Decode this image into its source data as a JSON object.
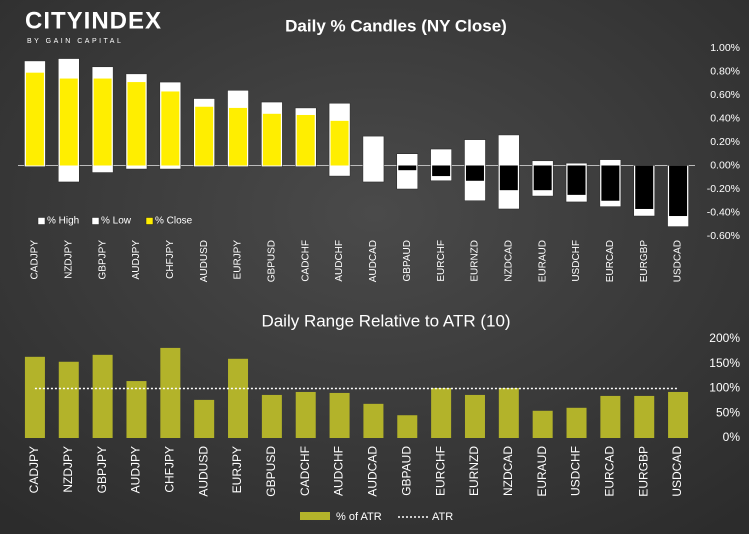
{
  "logo": {
    "name": "CITYINDEX",
    "tagline": "BY GAIN CAPITAL"
  },
  "chart_data": [
    {
      "type": "candle",
      "title": "Daily % Candles (NY Close)",
      "categories": [
        "CADJPY",
        "NZDJPY",
        "GBPJPY",
        "AUDJPY",
        "CHFJPY",
        "AUDUSD",
        "EURJPY",
        "GBPUSD",
        "CADCHF",
        "AUDCHF",
        "AUDCAD",
        "GBPAUD",
        "EURCHF",
        "EURNZD",
        "NZDCAD",
        "EURAUD",
        "USDCHF",
        "EURCAD",
        "EURGBP",
        "USDCAD"
      ],
      "series": [
        {
          "name": "% High",
          "color": "#ffffff",
          "values": [
            0.89,
            0.91,
            0.84,
            0.78,
            0.71,
            0.57,
            0.64,
            0.54,
            0.49,
            0.53,
            0.25,
            0.1,
            0.14,
            0.22,
            0.26,
            0.04,
            0.02,
            0.05,
            0,
            0
          ]
        },
        {
          "name": "% Low",
          "color": "#ffffff",
          "values": [
            -0.01,
            -0.14,
            -0.06,
            -0.03,
            -0.03,
            -0.01,
            -0.01,
            -0.01,
            -0.01,
            -0.09,
            -0.14,
            -0.2,
            -0.13,
            -0.3,
            -0.37,
            -0.26,
            -0.31,
            -0.35,
            -0.43,
            -0.52
          ]
        },
        {
          "name": "% Close",
          "color": "#ffee00",
          "negative_color": "#000000",
          "values": [
            0.79,
            0.74,
            0.74,
            0.71,
            0.63,
            0.5,
            0.49,
            0.44,
            0.43,
            0.38,
            0,
            -0.04,
            -0.09,
            -0.13,
            -0.21,
            -0.21,
            -0.25,
            -0.3,
            -0.37,
            -0.43
          ]
        }
      ],
      "ylim": [
        -0.6,
        1.0
      ],
      "yticks": [
        {
          "value": 1.0,
          "label": "1.00%"
        },
        {
          "value": 0.8,
          "label": "0.80%"
        },
        {
          "value": 0.6,
          "label": "0.60%"
        },
        {
          "value": 0.4,
          "label": "0.40%"
        },
        {
          "value": 0.2,
          "label": "0.20%"
        },
        {
          "value": 0,
          "label": "0.00%"
        },
        {
          "value": -0.2,
          "label": "-0.20%"
        },
        {
          "value": -0.4,
          "label": "-0.40%"
        },
        {
          "value": -0.6,
          "label": "-0.60%"
        }
      ],
      "legend": "lower left"
    },
    {
      "type": "bar",
      "title": "Daily Range Relative to ATR (10)",
      "categories": [
        "CADJPY",
        "NZDJPY",
        "GBPJPY",
        "AUDJPY",
        "CHFJPY",
        "AUDUSD",
        "EURJPY",
        "GBPUSD",
        "CADCHF",
        "AUDCHF",
        "AUDCAD",
        "GBPAUD",
        "EURCHF",
        "EURNZD",
        "NZDCAD",
        "EURAUD",
        "USDCHF",
        "EURCAD",
        "EURGBP",
        "USDCAD"
      ],
      "series": [
        {
          "name": "% of ATR",
          "color": "#b3b32a",
          "values": [
            164,
            154,
            168,
            115,
            182,
            77,
            160,
            87,
            93,
            91,
            69,
            46,
            101,
            87,
            101,
            55,
            61,
            85,
            85,
            93
          ]
        },
        {
          "name": "ATR",
          "color": "#ffffff",
          "style": "dotted",
          "values": [
            100,
            100,
            100,
            100,
            100,
            100,
            100,
            100,
            100,
            100,
            100,
            100,
            100,
            100,
            100,
            100,
            100,
            100,
            100,
            100
          ]
        }
      ],
      "ylim": [
        0,
        200
      ],
      "yticks": [
        {
          "value": 200,
          "label": "200%"
        },
        {
          "value": 150,
          "label": "150%"
        },
        {
          "value": 100,
          "label": "100%"
        },
        {
          "value": 50,
          "label": "50%"
        },
        {
          "value": 0,
          "label": "0%"
        }
      ],
      "legend": "lower center"
    }
  ]
}
